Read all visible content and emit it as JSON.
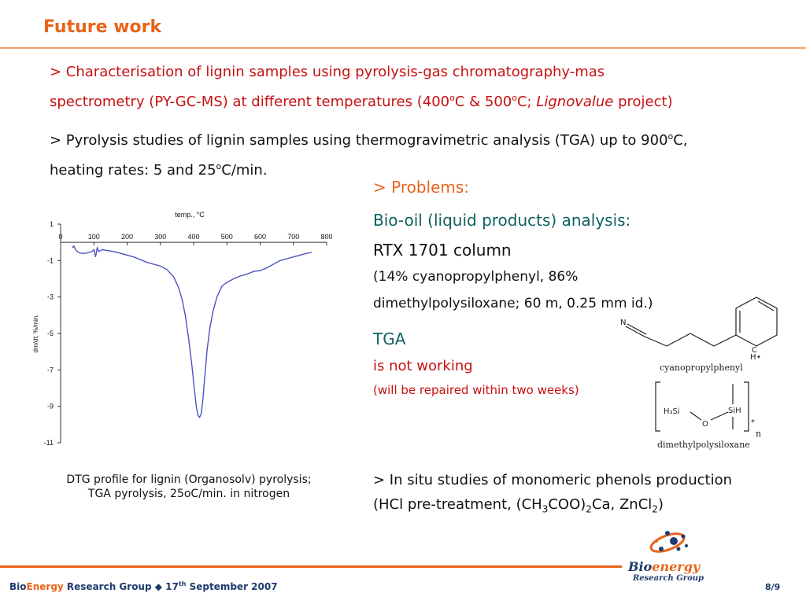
{
  "title": "Future work",
  "bullet1": {
    "line1": "> Characterisation of lignin samples using pyrolysis-gas chromatography-mas",
    "line2_pre": "spectrometry (PY-GC-MS) at different temperatures (400",
    "sup_o": "o",
    "line2_mid1": "C & 500",
    "line2_mid2": "C; ",
    "italic": "Lignovalue",
    "line2_post": " project)"
  },
  "bullet2": {
    "line1_pre": "> Pyrolysis studies of lignin samples using thermogravimetric analysis (TGA) up to 900",
    "sup_o": "o",
    "line1_post": "C,",
    "line2_pre": "heating rates: 5 and 25",
    "line2_post": "C/min."
  },
  "problems": {
    "heading": "> Problems:",
    "biooil": "Bio-oil (liquid products) analysis:",
    "column": "RTX 1701 column",
    "composition1": "(14% cyanopropylphenyl, 86%",
    "composition2": "dimethylpolysiloxane; 60 m, 0.25 mm id.)",
    "tga": "TGA",
    "not_working": "is not working",
    "repair": "(will be repaired within two weeks)"
  },
  "insitu": {
    "line1": "> In situ studies of monomeric phenols production",
    "line2_pre": "(HCl pre-treatment, (CH",
    "sub3": "3",
    "line2_mid1": "COO)",
    "sub2": "2",
    "line2_mid2": "Ca, ZnCl",
    "line2_post": ")"
  },
  "caption": {
    "line1": "DTG profile for lignin (Organosolv) pyrolysis;",
    "line2": "TGA pyrolysis, 25oC/min. in nitrogen"
  },
  "molecule": {
    "n_label": "N",
    "c_label": "C",
    "h_label": "H",
    "dot": "•",
    "name1": "cyanopropylphenyl",
    "h3si": "H₃Si",
    "o_label": "O",
    "sih": "SiH",
    "star": "*",
    "n_sub": "n",
    "name2": "dimethylpolysiloxane"
  },
  "footer": {
    "bio": "Bio",
    "energy": "Energy",
    "rest": " Research Group",
    "sep": " ◆ ",
    "date_pre": "17",
    "date_sup": "th",
    "date_post": " September 2007",
    "page": "8/9"
  },
  "logo": {
    "bio": "Bio",
    "energy": "energy",
    "sub": "Research Group"
  },
  "colors": {
    "accent": "#e8641a",
    "red_text": "#c81010",
    "teal_text": "#106060",
    "curve": "#4a55c0",
    "footer_text": "#1e3a6e"
  },
  "chart_data": {
    "type": "line",
    "title": "temp., °C",
    "xlabel": "temp., °C",
    "ylabel": "dm/dt; %/min.",
    "x_ticks": [
      0,
      100,
      200,
      300,
      400,
      500,
      600,
      700,
      800
    ],
    "y_ticks": [
      1,
      -1,
      -3,
      -5,
      -7,
      -9,
      -11
    ],
    "xlim": [
      0,
      800
    ],
    "ylim": [
      -11,
      1
    ],
    "x_axis_at_top": true,
    "series": [
      {
        "points": [
          [
            35,
            -0.3
          ],
          [
            40,
            -0.2
          ],
          [
            45,
            -0.4
          ],
          [
            50,
            -0.5
          ],
          [
            60,
            -0.6
          ],
          [
            75,
            -0.6
          ],
          [
            95,
            -0.5
          ],
          [
            100,
            -0.4
          ],
          [
            105,
            -0.8
          ],
          [
            110,
            -0.3
          ],
          [
            115,
            -0.5
          ],
          [
            125,
            -0.4
          ],
          [
            140,
            -0.45
          ],
          [
            160,
            -0.5
          ],
          [
            180,
            -0.6
          ],
          [
            200,
            -0.7
          ],
          [
            220,
            -0.8
          ],
          [
            240,
            -0.95
          ],
          [
            260,
            -1.1
          ],
          [
            280,
            -1.2
          ],
          [
            300,
            -1.3
          ],
          [
            320,
            -1.5
          ],
          [
            340,
            -1.9
          ],
          [
            355,
            -2.5
          ],
          [
            365,
            -3.1
          ],
          [
            375,
            -4.0
          ],
          [
            385,
            -5.3
          ],
          [
            395,
            -6.8
          ],
          [
            402,
            -8.0
          ],
          [
            408,
            -9.0
          ],
          [
            413,
            -9.5
          ],
          [
            418,
            -9.6
          ],
          [
            423,
            -9.4
          ],
          [
            428,
            -8.6
          ],
          [
            433,
            -7.5
          ],
          [
            440,
            -6.0
          ],
          [
            448,
            -4.8
          ],
          [
            458,
            -3.8
          ],
          [
            470,
            -3.0
          ],
          [
            485,
            -2.4
          ],
          [
            500,
            -2.2
          ],
          [
            520,
            -2.0
          ],
          [
            540,
            -1.85
          ],
          [
            560,
            -1.75
          ],
          [
            580,
            -1.6
          ],
          [
            600,
            -1.55
          ],
          [
            620,
            -1.4
          ],
          [
            640,
            -1.2
          ],
          [
            660,
            -1.0
          ],
          [
            680,
            -0.9
          ],
          [
            700,
            -0.8
          ],
          [
            720,
            -0.7
          ],
          [
            740,
            -0.6
          ],
          [
            755,
            -0.55
          ]
        ]
      }
    ]
  }
}
